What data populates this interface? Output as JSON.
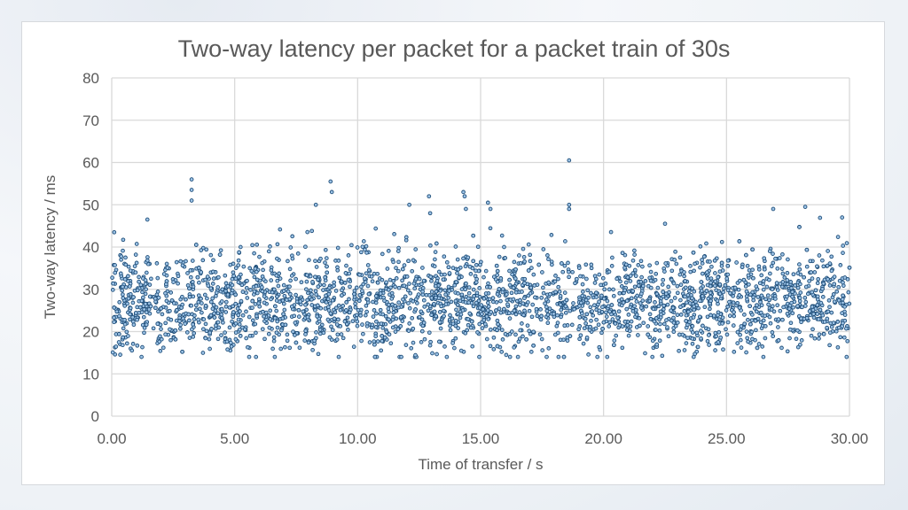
{
  "chart_data": {
    "type": "scatter",
    "title": "Two-way latency per packet for a packet train of 30s",
    "xlabel": "Time of transfer / s",
    "ylabel": "Two-way latency / ms",
    "xlim": [
      0,
      30
    ],
    "ylim": [
      0,
      80
    ],
    "x_ticks": [
      "0.00",
      "5.00",
      "10.00",
      "15.00",
      "20.00",
      "25.00",
      "30.00"
    ],
    "y_ticks": [
      "0",
      "10",
      "20",
      "30",
      "40",
      "50",
      "60",
      "70",
      "80"
    ],
    "grid": true,
    "legend": null,
    "marker": {
      "shape": "circle",
      "stroke": "#1f4e79",
      "fill": "#9dc3e6"
    },
    "series": [
      {
        "name": "Two-way latency",
        "n_points": 3000,
        "distribution": {
          "mean_ms": 27,
          "typical_range_ms": [
            15,
            40
          ],
          "min_ms": 14,
          "max_ms": 60.5
        },
        "notable_points": [
          {
            "x": 3.25,
            "y": 56
          },
          {
            "x": 3.25,
            "y": 53.5
          },
          {
            "x": 3.25,
            "y": 51
          },
          {
            "x": 8.9,
            "y": 55.5
          },
          {
            "x": 8.95,
            "y": 53
          },
          {
            "x": 8.3,
            "y": 50
          },
          {
            "x": 12.1,
            "y": 50
          },
          {
            "x": 12.9,
            "y": 52
          },
          {
            "x": 12.95,
            "y": 48
          },
          {
            "x": 14.3,
            "y": 53
          },
          {
            "x": 14.35,
            "y": 52
          },
          {
            "x": 14.4,
            "y": 49
          },
          {
            "x": 15.3,
            "y": 50.5
          },
          {
            "x": 15.4,
            "y": 49
          },
          {
            "x": 18.6,
            "y": 60.5
          },
          {
            "x": 18.6,
            "y": 50
          },
          {
            "x": 18.6,
            "y": 49
          },
          {
            "x": 22.5,
            "y": 45.5
          },
          {
            "x": 26.9,
            "y": 49
          },
          {
            "x": 28.2,
            "y": 49.5
          },
          {
            "x": 29.7,
            "y": 47
          },
          {
            "x": 0.1,
            "y": 43.5
          },
          {
            "x": 1.45,
            "y": 46.5
          }
        ]
      }
    ]
  }
}
